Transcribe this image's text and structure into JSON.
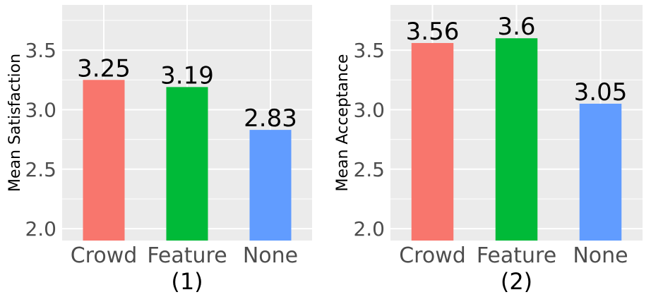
{
  "chart_data": [
    {
      "type": "bar",
      "categories": [
        "Crowd",
        "Feature",
        "None"
      ],
      "values": [
        3.25,
        3.19,
        2.83
      ],
      "value_labels": [
        "3.25",
        "3.19",
        "2.83"
      ],
      "ylabel": "Mean Satisfaction",
      "yticks": [
        "2.0",
        "2.5",
        "3.0",
        "3.5"
      ],
      "ylim": [
        1.9,
        3.88
      ],
      "panel_label": "(1)",
      "grid": true
    },
    {
      "type": "bar",
      "categories": [
        "Crowd",
        "Feature",
        "None"
      ],
      "values": [
        3.56,
        3.6,
        3.05
      ],
      "value_labels": [
        "3.56",
        "3.6",
        "3.05"
      ],
      "ylabel": "Mean Acceptance",
      "yticks": [
        "2.0",
        "2.5",
        "3.0",
        "3.5"
      ],
      "ylim": [
        1.9,
        3.88
      ],
      "panel_label": "(2)",
      "grid": true
    }
  ],
  "colors": {
    "panel_background": "#ebebeb",
    "grid": "#ffffff",
    "bars": [
      "#f8766d",
      "#00ba38",
      "#619cff"
    ]
  }
}
